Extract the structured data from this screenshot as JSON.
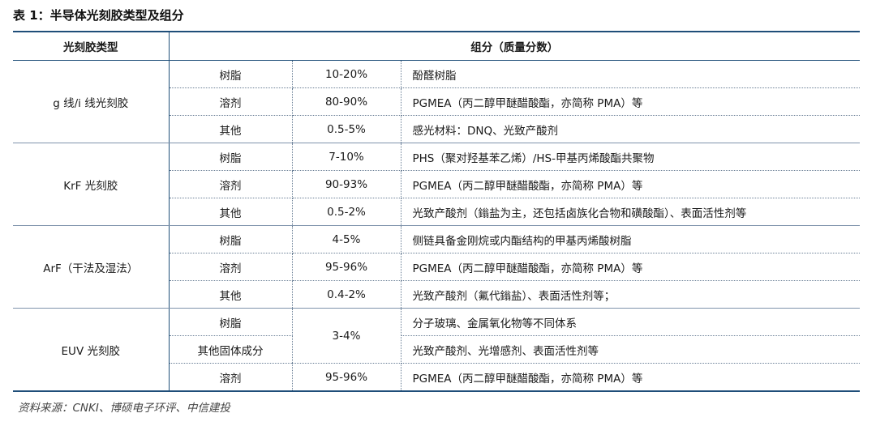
{
  "title": "表 1：半导体光刻胶类型及组分",
  "headers": {
    "type": "光刻胶类型",
    "composition": "组分（质量分数）"
  },
  "groups": [
    {
      "type": "g 线/i 线光刻胶",
      "rows": [
        {
          "component": "树脂",
          "fraction": "10-20%",
          "description": "酚醛树脂"
        },
        {
          "component": "溶剂",
          "fraction": "80-90%",
          "description": "PGMEA（丙二醇甲醚醋酸酯，亦简称 PMA）等"
        },
        {
          "component": "其他",
          "fraction": "0.5-5%",
          "description": "感光材料：DNQ、光致产酸剂"
        }
      ]
    },
    {
      "type": "KrF 光刻胶",
      "rows": [
        {
          "component": "树脂",
          "fraction": "7-10%",
          "description": "PHS（聚对羟基苯乙烯）/HS-甲基丙烯酸酯共聚物"
        },
        {
          "component": "溶剂",
          "fraction": "90-93%",
          "description": "PGMEA（丙二醇甲醚醋酸酯，亦简称 PMA）等"
        },
        {
          "component": "其他",
          "fraction": "0.5-2%",
          "description": "光致产酸剂（鎓盐为主，还包括卤族化合物和磺酸酯）、表面活性剂等"
        }
      ]
    },
    {
      "type": "ArF（干法及湿法）",
      "rows": [
        {
          "component": "树脂",
          "fraction": "4-5%",
          "description": "侧链具备金刚烷或内酯结构的甲基丙烯酸树脂"
        },
        {
          "component": "溶剂",
          "fraction": "95-96%",
          "description": "PGMEA（丙二醇甲醚醋酸酯，亦简称 PMA）等"
        },
        {
          "component": "其他",
          "fraction": "0.4-2%",
          "description": "光致产酸剂（氟代鎓盐）、表面活性剂等；"
        }
      ]
    },
    {
      "type": "EUV 光刻胶",
      "rows": [
        {
          "component": "树脂",
          "fraction": "3-4%",
          "description": "分子玻璃、金属氧化物等不同体系"
        },
        {
          "component": "其他固体成分",
          "fraction": "",
          "description": "光致产酸剂、光增感剂、表面活性剂等"
        },
        {
          "component": "溶剂",
          "fraction": "95-96%",
          "description": "PGMEA（丙二醇甲醚醋酸酯，亦简称 PMA）等"
        }
      ]
    }
  ],
  "source": "资料来源：CNKI、博硕电子环评、中信建投"
}
